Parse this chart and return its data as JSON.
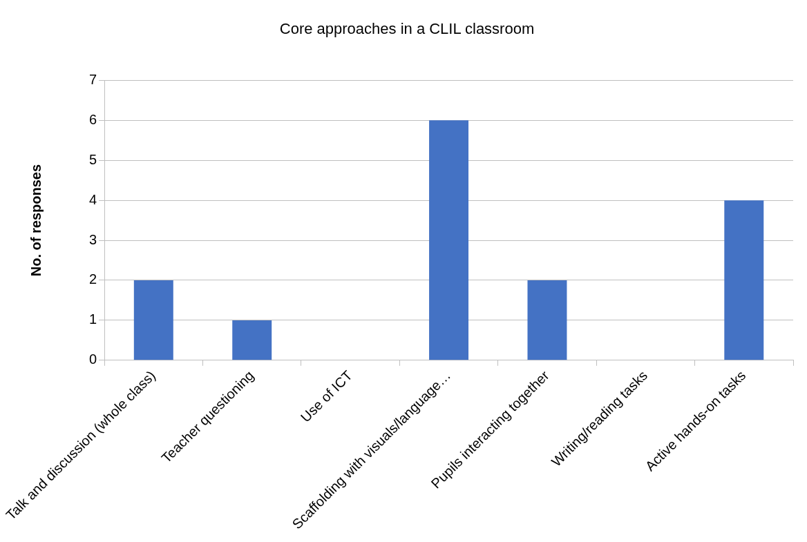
{
  "chart_data": {
    "type": "bar",
    "title": "Core approaches in a CLIL classroom",
    "ylabel": "No. of responses",
    "categories": [
      "Talk and discussion (whole class)",
      "Teacher questioning",
      "Use of ICT",
      "Scaffolding with visuals/language…",
      "Pupils interacting together",
      "Writing/reading tasks",
      "Active hands-on tasks"
    ],
    "values": [
      2,
      1,
      0,
      6,
      2,
      0,
      4
    ],
    "color": "#4472c4",
    "ylim": [
      0,
      7
    ],
    "yticks": [
      0,
      1,
      2,
      3,
      4,
      5,
      6,
      7
    ],
    "grid": "y"
  }
}
